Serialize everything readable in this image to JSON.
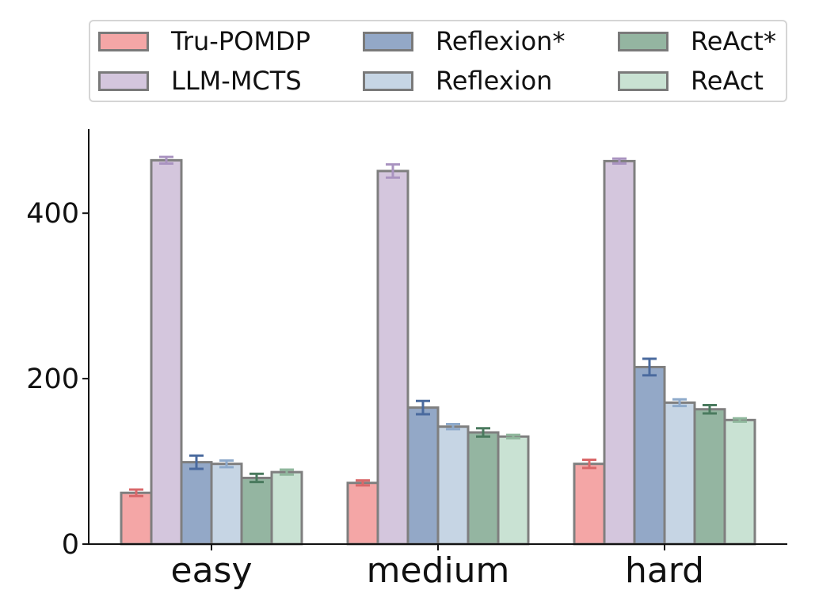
{
  "chart_data": {
    "type": "bar",
    "title": "",
    "xlabel": "",
    "ylabel": "",
    "categories": [
      "easy",
      "medium",
      "hard"
    ],
    "ylim": [
      0,
      500
    ],
    "yticks": [
      0,
      200,
      400
    ],
    "grid": false,
    "legend_placement": "top",
    "error_bars": true,
    "series": [
      {
        "name": "Tru-POMDP",
        "color": "#f4a6a6",
        "err_color": "#d9686a",
        "values": [
          62,
          74,
          97
        ],
        "errors": [
          4,
          3,
          5
        ]
      },
      {
        "name": "LLM-MCTS",
        "color": "#d4c6dd",
        "err_color": "#a993c0",
        "values": [
          464,
          451,
          463
        ],
        "errors": [
          4,
          8,
          3
        ]
      },
      {
        "name": "Reflexion*",
        "color": "#93a8c7",
        "err_color": "#4a6a9e",
        "values": [
          99,
          165,
          214
        ],
        "errors": [
          8,
          8,
          10
        ]
      },
      {
        "name": "Reflexion",
        "color": "#c6d5e4",
        "err_color": "#8eaacb",
        "values": [
          97,
          142,
          171
        ],
        "errors": [
          4,
          3,
          4
        ]
      },
      {
        "name": "ReAct*",
        "color": "#94b5a1",
        "err_color": "#4a7a5e",
        "values": [
          80,
          135,
          163
        ],
        "errors": [
          5,
          5,
          5
        ]
      },
      {
        "name": "ReAct",
        "color": "#c9e2d3",
        "err_color": "#8fb79c",
        "values": [
          87,
          130,
          150
        ],
        "errors": [
          3,
          2,
          2
        ]
      }
    ]
  }
}
